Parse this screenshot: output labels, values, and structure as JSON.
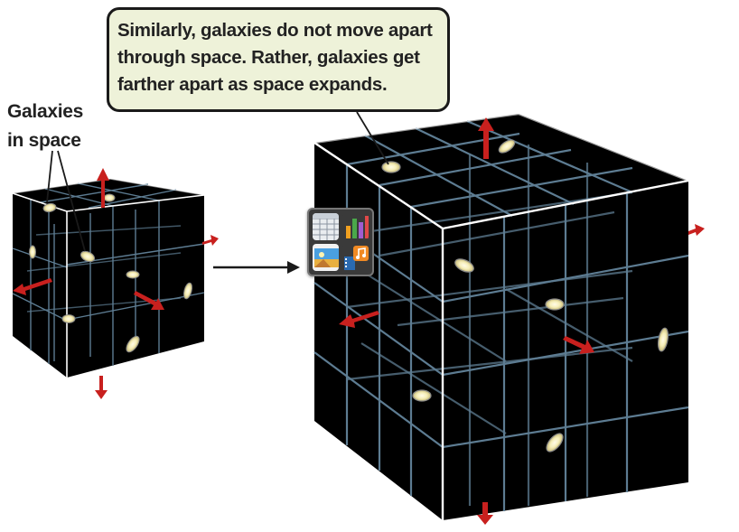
{
  "callout": {
    "text": "Similarly, galaxies do not move apart\nthrough space. Rather, galaxies get\nfarther apart as space expands."
  },
  "label": {
    "text": "Galaxies\nin space"
  },
  "colors": {
    "cube_face": "#000000",
    "grid_line": "#5d7c92",
    "cube_edge": "#ffffff",
    "expansion_arrow": "#c8201e",
    "callout_background": "#eef2d9",
    "galaxy_core": "#fff8dc"
  },
  "app_icons": [
    "table-icon",
    "chart-icon",
    "photo-icon",
    "music-video-icon"
  ]
}
